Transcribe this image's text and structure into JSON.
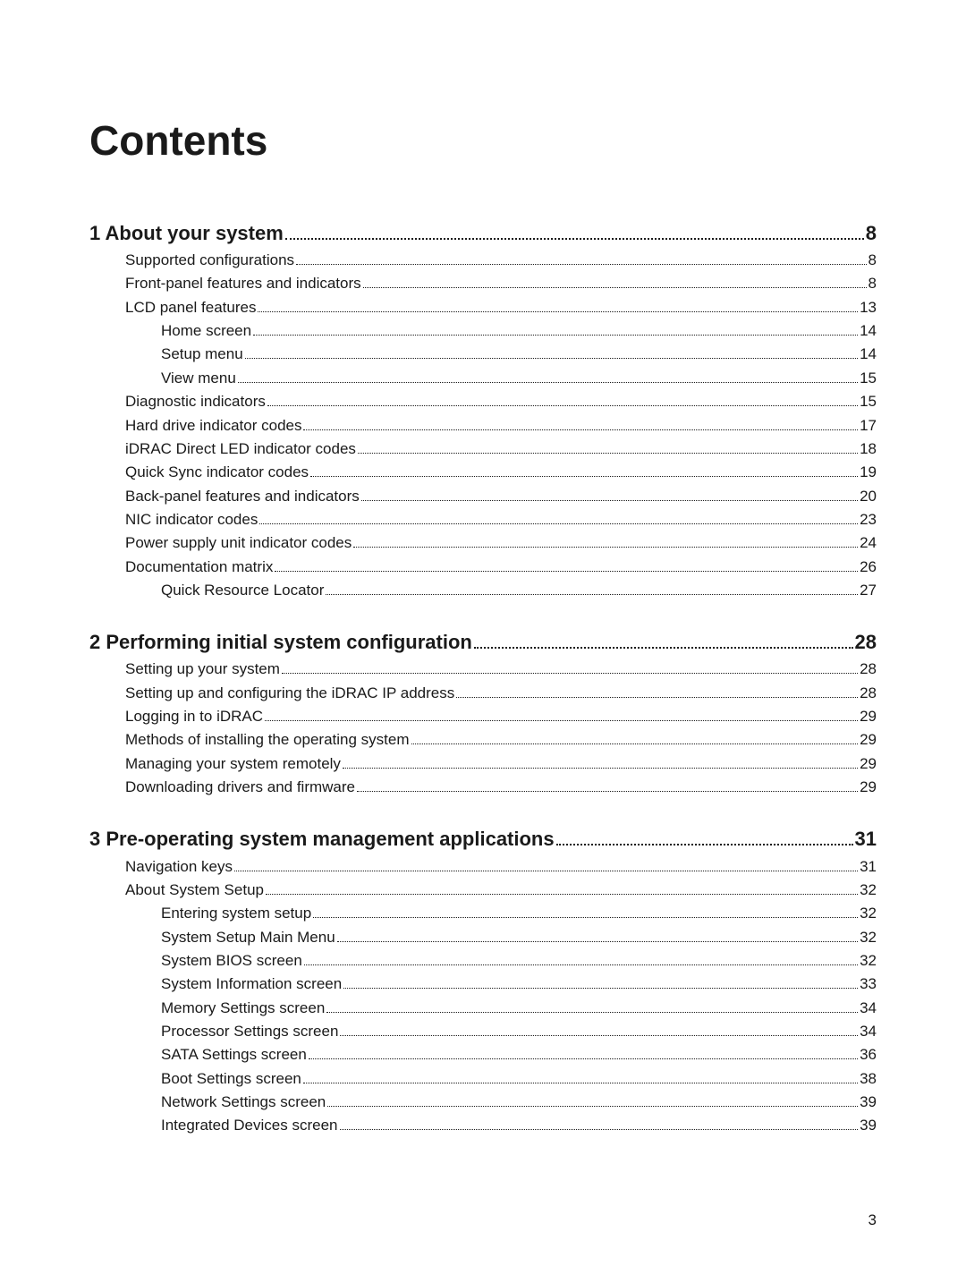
{
  "title": "Contents",
  "page_number": "3",
  "entries": [
    {
      "level": 0,
      "label": "1 About your system",
      "page": "8"
    },
    {
      "level": 1,
      "label": "Supported configurations",
      "page": "8"
    },
    {
      "level": 1,
      "label": "Front-panel features and indicators",
      "page": "8"
    },
    {
      "level": 1,
      "label": "LCD panel features",
      "page": "13"
    },
    {
      "level": 2,
      "label": "Home screen",
      "page": "14"
    },
    {
      "level": 2,
      "label": "Setup menu",
      "page": "14"
    },
    {
      "level": 2,
      "label": "View menu",
      "page": "15"
    },
    {
      "level": 1,
      "label": "Diagnostic indicators",
      "page": "15"
    },
    {
      "level": 1,
      "label": "Hard drive indicator codes",
      "page": "17"
    },
    {
      "level": 1,
      "label": "iDRAC Direct LED indicator codes",
      "page": "18"
    },
    {
      "level": 1,
      "label": "Quick Sync indicator codes",
      "page": "19"
    },
    {
      "level": 1,
      "label": "Back-panel features and indicators",
      "page": "20"
    },
    {
      "level": 1,
      "label": "NIC indicator codes",
      "page": "23"
    },
    {
      "level": 1,
      "label": "Power supply unit indicator codes",
      "page": "24"
    },
    {
      "level": 1,
      "label": "Documentation matrix",
      "page": "26"
    },
    {
      "level": 2,
      "label": "Quick Resource Locator ",
      "page": "27"
    },
    {
      "level": 0,
      "label": "2 Performing initial system configuration ",
      "page": "28"
    },
    {
      "level": 1,
      "label": "Setting up your system",
      "page": "28"
    },
    {
      "level": 1,
      "label": "Setting up and configuring the iDRAC IP address ",
      "page": "28"
    },
    {
      "level": 1,
      "label": "Logging in to iDRAC",
      "page": "29"
    },
    {
      "level": 1,
      "label": "Methods of installing the operating system",
      "page": "29"
    },
    {
      "level": 1,
      "label": "Managing your system remotely",
      "page": "29"
    },
    {
      "level": 1,
      "label": "Downloading drivers and firmware",
      "page": "29"
    },
    {
      "level": 0,
      "label": "3 Pre-operating system management applications",
      "page": "31"
    },
    {
      "level": 1,
      "label": "Navigation keys",
      "page": "31"
    },
    {
      "level": 1,
      "label": "About System Setup",
      "page": "32"
    },
    {
      "level": 2,
      "label": "Entering system setup",
      "page": "32"
    },
    {
      "level": 2,
      "label": "System Setup Main Menu",
      "page": "32"
    },
    {
      "level": 2,
      "label": "System BIOS screen",
      "page": "32"
    },
    {
      "level": 2,
      "label": "System Information screen",
      "page": "33"
    },
    {
      "level": 2,
      "label": "Memory Settings screen",
      "page": "34"
    },
    {
      "level": 2,
      "label": "Processor Settings screen",
      "page": "34"
    },
    {
      "level": 2,
      "label": "SATA Settings screen",
      "page": "36"
    },
    {
      "level": 2,
      "label": "Boot Settings screen",
      "page": "38"
    },
    {
      "level": 2,
      "label": "Network Settings screen",
      "page": "39"
    },
    {
      "level": 2,
      "label": "Integrated Devices screen",
      "page": "39"
    }
  ]
}
